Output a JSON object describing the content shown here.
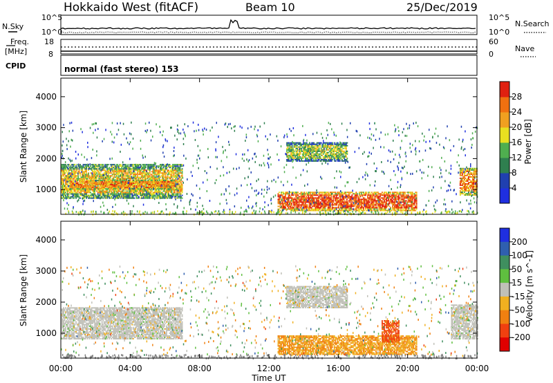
{
  "header": {
    "station": "Hokkaido West (fitACF)",
    "beam": "Beam 10",
    "date": "25/Dec/2019"
  },
  "noise_panel": {
    "left_label": "N.Sky",
    "left_ticks": [
      "10^5",
      "10^0"
    ],
    "right_ticks": [
      "10^5",
      "10^0"
    ],
    "right_label": "N.Search"
  },
  "freq_panel": {
    "left_label_1": "Freq.",
    "left_label_2": "[MHz]",
    "left_ticks": [
      "18",
      "8"
    ],
    "right_ticks": [
      "60",
      "0"
    ],
    "right_label": "Nave"
  },
  "cpid_panel": {
    "left_label": "CPID",
    "mode_text": "normal (fast stereo) 153"
  },
  "axes": {
    "xlabel": "Time UT",
    "x_ticks": [
      "00:00",
      "04:00",
      "08:00",
      "12:00",
      "16:00",
      "20:00",
      "00:00"
    ],
    "ylabel_slant": "Slant Range [km]",
    "y_ticks": [
      "1000",
      "2000",
      "3000",
      "4000"
    ]
  },
  "power_bar": {
    "label": "Power [dB]",
    "ticks": [
      "4",
      "8",
      "12",
      "16",
      "20",
      "24",
      "28"
    ],
    "colors": [
      "#1f2fe0",
      "#2040b0",
      "#2f7f4f",
      "#4fae4f",
      "#e8e020",
      "#f0a020",
      "#f07010",
      "#e02010"
    ]
  },
  "velocity_bar": {
    "label": "Velocity [m s^-1]",
    "ticks": [
      "200",
      "100",
      "50",
      "15",
      "-15",
      "-50",
      "-100",
      "-200"
    ],
    "colors": [
      "#1f2fe0",
      "#2f5faf",
      "#3f8f5f",
      "#5fbf3f",
      "#c0c0b8",
      "#f0b020",
      "#f08010",
      "#f04010",
      "#e00000"
    ]
  },
  "chart_data": [
    {
      "type": "heatmap",
      "title": "Power",
      "xlabel": "Time UT",
      "ylabel": "Slant Range [km]",
      "xlim": [
        0,
        24
      ],
      "ylim": [
        200,
        4600
      ],
      "colorbar_label": "Power [dB]",
      "colorbar_range": [
        0,
        32
      ],
      "regions": [
        {
          "t": [
            0,
            7
          ],
          "r": [
            700,
            1800
          ],
          "value": 20
        },
        {
          "t": [
            0.5,
            6.5
          ],
          "r": [
            1000,
            1300
          ],
          "value": 24
        },
        {
          "t": [
            12.5,
            20.5
          ],
          "r": [
            300,
            900
          ],
          "value": 28
        },
        {
          "t": [
            13,
            16.5
          ],
          "r": [
            1900,
            2500
          ],
          "value": 16
        },
        {
          "t": [
            23,
            24
          ],
          "r": [
            800,
            1700
          ],
          "value": 24
        }
      ]
    },
    {
      "type": "heatmap",
      "title": "Velocity",
      "xlabel": "Time UT",
      "ylabel": "Slant Range [km]",
      "xlim": [
        0,
        24
      ],
      "ylim": [
        200,
        4600
      ],
      "colorbar_label": "Velocity [m s^-1]",
      "colorbar_range": [
        -250,
        250
      ],
      "regions": [
        {
          "t": [
            0,
            7
          ],
          "r": [
            800,
            1800
          ],
          "value": 0
        },
        {
          "t": [
            12.5,
            20.5
          ],
          "r": [
            300,
            900
          ],
          "value": -80
        },
        {
          "t": [
            13,
            16.5
          ],
          "r": [
            1800,
            2500
          ],
          "value": 0
        },
        {
          "t": [
            18.5,
            19.5
          ],
          "r": [
            700,
            1400
          ],
          "value": -150
        },
        {
          "t": [
            22.5,
            24
          ],
          "r": [
            800,
            1900
          ],
          "value": 0
        }
      ]
    }
  ]
}
